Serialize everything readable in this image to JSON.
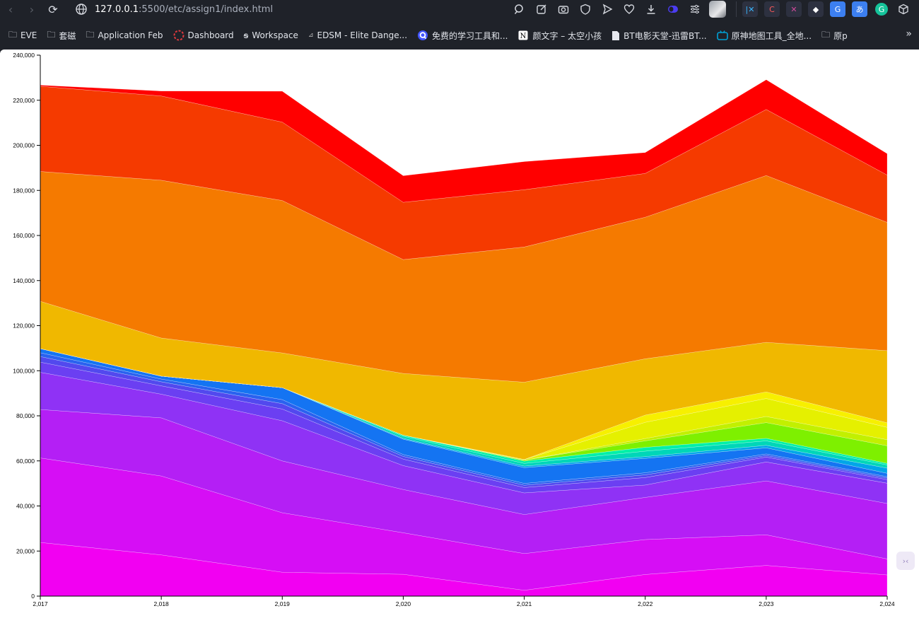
{
  "browser": {
    "url_host": "127.0.0.1",
    "url_rest": ":5500/etc/assign1/index.html",
    "nav": {
      "back": "‹",
      "forward": "›",
      "reload": "⟳"
    },
    "extension_icons": [
      "zoom-icon",
      "share-icon",
      "camera-icon",
      "shield-icon",
      "send-icon",
      "heart-icon",
      "download-icon",
      "toggle-icon",
      "tune-icon"
    ],
    "pinned_extensions": [
      "pinned-ext-1",
      "pinned-ext-2",
      "pinned-ext-3",
      "pinned-ext-4",
      "pinned-ext-5",
      "pinned-ext-6",
      "pinned-ext-7",
      "pinned-ext-8"
    ]
  },
  "bookmarks": [
    {
      "label": "EVE",
      "icon": "folder-icon"
    },
    {
      "label": "套磁",
      "icon": "folder-icon"
    },
    {
      "label": "Application Feb",
      "icon": "folder-icon"
    },
    {
      "label": "Dashboard",
      "icon": "dashboard-icon"
    },
    {
      "label": "Workspace",
      "icon": "workspace-icon"
    },
    {
      "label": "EDSM - Elite Dange...",
      "icon": "edsm-icon"
    },
    {
      "label": "免费的学习工具和...",
      "icon": "quizlet-icon"
    },
    {
      "label": "颜文字 – 太空小孩",
      "icon": "notion-icon"
    },
    {
      "label": "BT电影天堂-迅雷BT...",
      "icon": "page-icon"
    },
    {
      "label": "原神地图工具_全地...",
      "icon": "bilibili-icon"
    },
    {
      "label": "原p",
      "icon": "folder-icon"
    }
  ],
  "bookmarks_more": "»",
  "chart_data": {
    "type": "area",
    "stacked": true,
    "x": [
      2017,
      2018,
      2019,
      2020,
      2021,
      2022,
      2023,
      2024
    ],
    "x_tick_labels": [
      "2,017",
      "2,018",
      "2,019",
      "2,020",
      "2,021",
      "2,022",
      "2,023",
      "2,024"
    ],
    "y_tick_labels": [
      "0",
      "20,000",
      "40,000",
      "60,000",
      "80,000",
      "100,000",
      "120,000",
      "140,000",
      "160,000",
      "180,000",
      "200,000",
      "220,000",
      "240,000"
    ],
    "ylim": [
      0,
      240000
    ],
    "grid": false,
    "legend": "none",
    "series": [
      {
        "color": "#f200f2",
        "values": [
          23800,
          18300,
          10600,
          9700,
          2600,
          9600,
          13600,
          9400
        ]
      },
      {
        "color": "#d60ef5",
        "values": [
          37500,
          35000,
          26400,
          18400,
          16300,
          15500,
          13600,
          7100
        ]
      },
      {
        "color": "#b41ff5",
        "values": [
          21500,
          25800,
          23000,
          19200,
          17300,
          18700,
          23900,
          24600
        ]
      },
      {
        "color": "#8f32f5",
        "values": [
          16500,
          10500,
          17800,
          10600,
          9600,
          5500,
          8400,
          9000
        ]
      },
      {
        "color": "#6b3ff2",
        "values": [
          4500,
          3700,
          5200,
          2900,
          2400,
          3300,
          2200,
          1600
        ]
      },
      {
        "color": "#5249ee",
        "values": [
          2500,
          1800,
          2400,
          1200,
          1000,
          1200,
          700,
          700
        ]
      },
      {
        "color": "#2a62ef",
        "values": [
          1700,
          1200,
          1800,
          800,
          800,
          900,
          700,
          600
        ]
      },
      {
        "color": "#1474f2",
        "values": [
          1800,
          1300,
          5300,
          6800,
          7000,
          6400,
          2700,
          1500
        ]
      },
      {
        "color": "#00a6e8",
        "values": [
          0,
          0,
          0,
          400,
          700,
          800,
          1100,
          2300
        ]
      },
      {
        "color": "#00d6b8",
        "values": [
          0,
          0,
          0,
          900,
          1200,
          2400,
          2000,
          1400
        ]
      },
      {
        "color": "#00f0a8",
        "values": [
          0,
          0,
          0,
          500,
          1000,
          1700,
          1100,
          700
        ]
      },
      {
        "color": "#7ef000",
        "values": [
          0,
          0,
          0,
          0,
          400,
          2900,
          7000,
          7800
        ]
      },
      {
        "color": "#c2f000",
        "values": [
          0,
          0,
          0,
          0,
          0,
          1000,
          2700,
          2700
        ]
      },
      {
        "color": "#e5f000",
        "values": [
          0,
          0,
          0,
          0,
          300,
          7200,
          8000,
          5500
        ]
      },
      {
        "color": "#f7f000",
        "values": [
          0,
          0,
          0,
          0,
          0,
          3200,
          2900,
          2000
        ]
      },
      {
        "color": "#f0b800",
        "values": [
          21000,
          16900,
          15400,
          27400,
          34300,
          25000,
          22000,
          32000
        ]
      },
      {
        "color": "#f57a00",
        "values": [
          57600,
          70000,
          67600,
          50500,
          60000,
          62800,
          74000,
          56900
        ]
      },
      {
        "color": "#f53a00",
        "values": [
          37800,
          37400,
          34800,
          25400,
          25400,
          19400,
          29300,
          21000
        ]
      },
      {
        "color": "#ff0000",
        "values": [
          500,
          2200,
          13700,
          11800,
          12500,
          9300,
          13200,
          9500
        ]
      }
    ]
  }
}
